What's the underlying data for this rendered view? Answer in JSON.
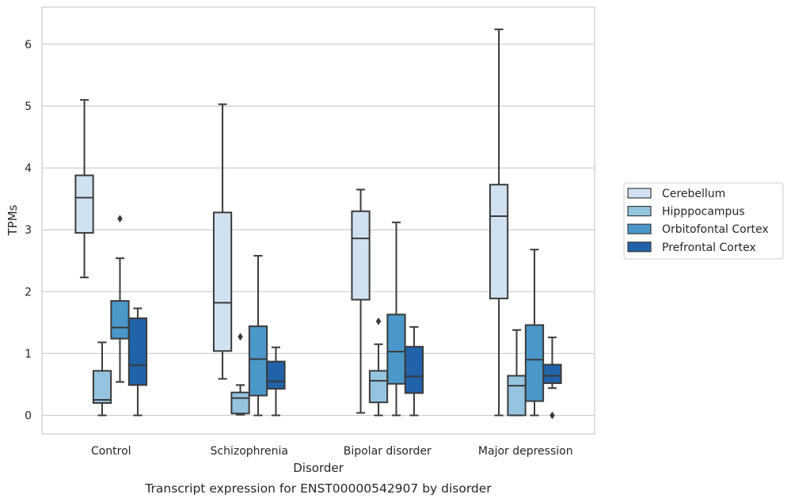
{
  "chart_data": {
    "type": "box",
    "title": "",
    "caption": "Transcript expression for ENST00000542907 by disorder",
    "xlabel": "Disorder",
    "ylabel": "TPMs",
    "ylim": [
      -0.3,
      6.6
    ],
    "yticks": [
      0,
      1,
      2,
      3,
      4,
      5,
      6
    ],
    "grid": "horizontal",
    "legend_position": "right",
    "categories": [
      "Control",
      "Schizophrenia",
      "Bipolar disorder",
      "Major depression"
    ],
    "series": [
      {
        "name": "Cerebellum",
        "color": "#d0e1f2",
        "boxes": [
          {
            "min": 2.23,
            "q1": 2.95,
            "median": 3.52,
            "q3": 3.88,
            "max": 5.1,
            "outliers": []
          },
          {
            "min": 0.59,
            "q1": 1.04,
            "median": 1.82,
            "q3": 3.28,
            "max": 5.03,
            "outliers": []
          },
          {
            "min": 0.04,
            "q1": 1.87,
            "median": 2.86,
            "q3": 3.3,
            "max": 3.65,
            "outliers": []
          },
          {
            "min": 0.0,
            "q1": 1.89,
            "median": 3.22,
            "q3": 3.73,
            "max": 6.24,
            "outliers": []
          }
        ]
      },
      {
        "name": "Hipppocampus",
        "color": "#94c4df",
        "boxes": [
          {
            "min": 0.0,
            "q1": 0.2,
            "median": 0.25,
            "q3": 0.72,
            "max": 1.18,
            "outliers": []
          },
          {
            "min": 0.01,
            "q1": 0.03,
            "median": 0.28,
            "q3": 0.37,
            "max": 0.49,
            "outliers": [
              1.27
            ]
          },
          {
            "min": 0.0,
            "q1": 0.21,
            "median": 0.56,
            "q3": 0.72,
            "max": 1.15,
            "outliers": [
              1.52
            ]
          },
          {
            "min": 0.0,
            "q1": 0.0,
            "median": 0.48,
            "q3": 0.64,
            "max": 1.38,
            "outliers": []
          }
        ]
      },
      {
        "name": "Orbitofontal Cortex",
        "color": "#4a98c9",
        "boxes": [
          {
            "min": 0.54,
            "q1": 1.24,
            "median": 1.42,
            "q3": 1.85,
            "max": 2.54,
            "outliers": [
              3.18
            ]
          },
          {
            "min": 0.0,
            "q1": 0.32,
            "median": 0.91,
            "q3": 1.44,
            "max": 2.58,
            "outliers": []
          },
          {
            "min": 0.0,
            "q1": 0.51,
            "median": 1.03,
            "q3": 1.63,
            "max": 3.12,
            "outliers": []
          },
          {
            "min": 0.0,
            "q1": 0.23,
            "median": 0.9,
            "q3": 1.46,
            "max": 2.68,
            "outliers": []
          }
        ]
      },
      {
        "name": "Prefrontal Cortex",
        "color": "#2163aa",
        "boxes": [
          {
            "min": 0.0,
            "q1": 0.49,
            "median": 0.81,
            "q3": 1.57,
            "max": 1.73,
            "outliers": []
          },
          {
            "min": 0.0,
            "q1": 0.43,
            "median": 0.55,
            "q3": 0.87,
            "max": 1.1,
            "outliers": []
          },
          {
            "min": 0.0,
            "q1": 0.36,
            "median": 0.63,
            "q3": 1.11,
            "max": 1.43,
            "outliers": []
          },
          {
            "min": 0.44,
            "q1": 0.52,
            "median": 0.64,
            "q3": 0.82,
            "max": 1.26,
            "outliers": [
              0.0
            ]
          }
        ]
      }
    ]
  }
}
